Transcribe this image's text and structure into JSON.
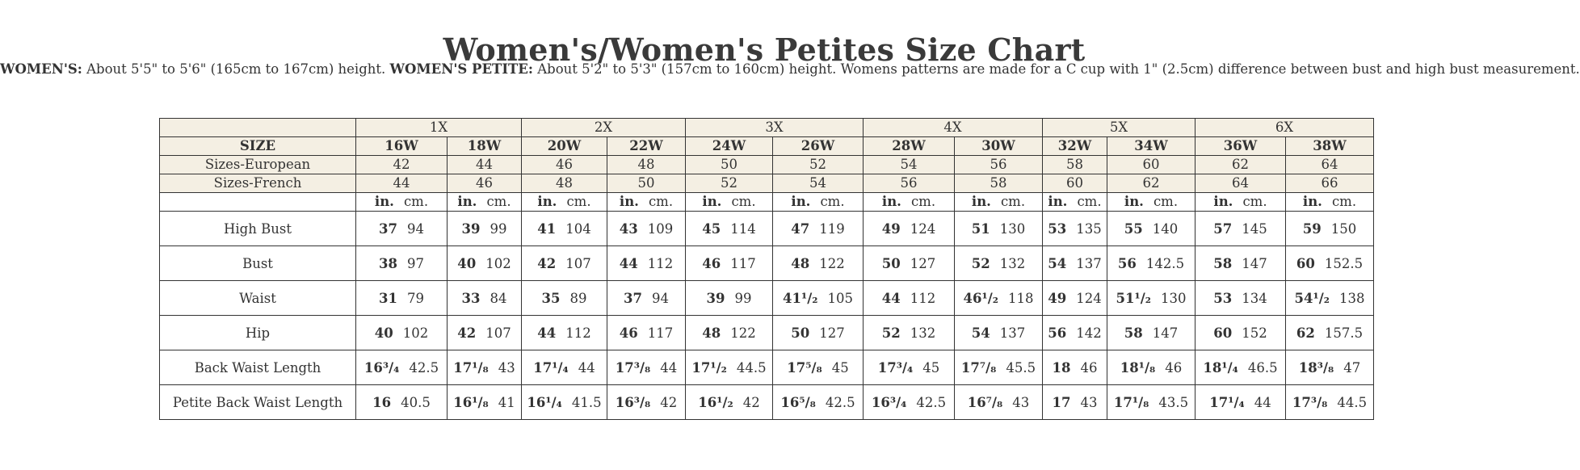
{
  "title": "Women's/Women's Petites Size Chart",
  "intro": {
    "womens_label": "WOMEN'S:",
    "womens_text": " About 5'5\" to 5'6\" (165cm to 167cm) height. ",
    "petite_label": "WOMEN'S PETITE:",
    "petite_text": " About 5'2\" to 5'3\" (157cm to 160cm) height. Womens patterns are made for a C cup with 1\" (2.5cm) difference between bust and high bust measurement."
  },
  "table": {
    "groups": [
      "1X",
      "2X",
      "3X",
      "4X",
      "5X",
      "6X"
    ],
    "size_label": "SIZE",
    "sizes": [
      "16W",
      "18W",
      "20W",
      "22W",
      "24W",
      "26W",
      "28W",
      "30W",
      "32W",
      "34W",
      "36W",
      "38W"
    ],
    "european_label": "Sizes-European",
    "european": [
      "42",
      "44",
      "46",
      "48",
      "50",
      "52",
      "54",
      "56",
      "58",
      "60",
      "62",
      "64"
    ],
    "french_label": "Sizes-French",
    "french": [
      "44",
      "46",
      "48",
      "50",
      "52",
      "54",
      "56",
      "58",
      "60",
      "62",
      "64",
      "66"
    ],
    "unit_in": "in.",
    "unit_cm": "cm.",
    "rows": [
      {
        "label": "High Bust",
        "values": [
          [
            "37",
            "94"
          ],
          [
            "39",
            "99"
          ],
          [
            "41",
            "104"
          ],
          [
            "43",
            "109"
          ],
          [
            "45",
            "114"
          ],
          [
            "47",
            "119"
          ],
          [
            "49",
            "124"
          ],
          [
            "51",
            "130"
          ],
          [
            "53",
            "135"
          ],
          [
            "55",
            "140"
          ],
          [
            "57",
            "145"
          ],
          [
            "59",
            "150"
          ]
        ]
      },
      {
        "label": "Bust",
        "values": [
          [
            "38",
            "97"
          ],
          [
            "40",
            "102"
          ],
          [
            "42",
            "107"
          ],
          [
            "44",
            "112"
          ],
          [
            "46",
            "117"
          ],
          [
            "48",
            "122"
          ],
          [
            "50",
            "127"
          ],
          [
            "52",
            "132"
          ],
          [
            "54",
            "137"
          ],
          [
            "56",
            "142.5"
          ],
          [
            "58",
            "147"
          ],
          [
            "60",
            "152.5"
          ]
        ]
      },
      {
        "label": "Waist",
        "values": [
          [
            "31",
            "79"
          ],
          [
            "33",
            "84"
          ],
          [
            "35",
            "89"
          ],
          [
            "37",
            "94"
          ],
          [
            "39",
            "99"
          ],
          [
            "41¹/₂",
            "105"
          ],
          [
            "44",
            "112"
          ],
          [
            "46¹/₂",
            "118"
          ],
          [
            "49",
            "124"
          ],
          [
            "51¹/₂",
            "130"
          ],
          [
            "53",
            "134"
          ],
          [
            "54¹/₂",
            "138"
          ]
        ]
      },
      {
        "label": "Hip",
        "values": [
          [
            "40",
            "102"
          ],
          [
            "42",
            "107"
          ],
          [
            "44",
            "112"
          ],
          [
            "46",
            "117"
          ],
          [
            "48",
            "122"
          ],
          [
            "50",
            "127"
          ],
          [
            "52",
            "132"
          ],
          [
            "54",
            "137"
          ],
          [
            "56",
            "142"
          ],
          [
            "58",
            "147"
          ],
          [
            "60",
            "152"
          ],
          [
            "62",
            "157.5"
          ]
        ]
      },
      {
        "label": "Back Waist Length",
        "values": [
          [
            "16³/₄",
            "42.5"
          ],
          [
            "17¹/₈",
            "43"
          ],
          [
            "17¹/₄",
            "44"
          ],
          [
            "17³/₈",
            "44"
          ],
          [
            "17¹/₂",
            "44.5"
          ],
          [
            "17⁵/₈",
            "45"
          ],
          [
            "17³/₄",
            "45"
          ],
          [
            "17⁷/₈",
            "45.5"
          ],
          [
            "18",
            "46"
          ],
          [
            "18¹/₈",
            "46"
          ],
          [
            "18¹/₄",
            "46.5"
          ],
          [
            "18³/₈",
            "47"
          ]
        ]
      },
      {
        "label": "Petite Back Waist Length",
        "values": [
          [
            "16",
            "40.5"
          ],
          [
            "16¹/₈",
            "41"
          ],
          [
            "16¹/₄",
            "41.5"
          ],
          [
            "16³/₈",
            "42"
          ],
          [
            "16¹/₂",
            "42"
          ],
          [
            "16⁵/₈",
            "42.5"
          ],
          [
            "16³/₄",
            "42.5"
          ],
          [
            "16⁷/₈",
            "43"
          ],
          [
            "17",
            "43"
          ],
          [
            "17¹/₈",
            "43.5"
          ],
          [
            "17¹/₄",
            "44"
          ],
          [
            "17³/₈",
            "44.5"
          ]
        ]
      }
    ]
  }
}
